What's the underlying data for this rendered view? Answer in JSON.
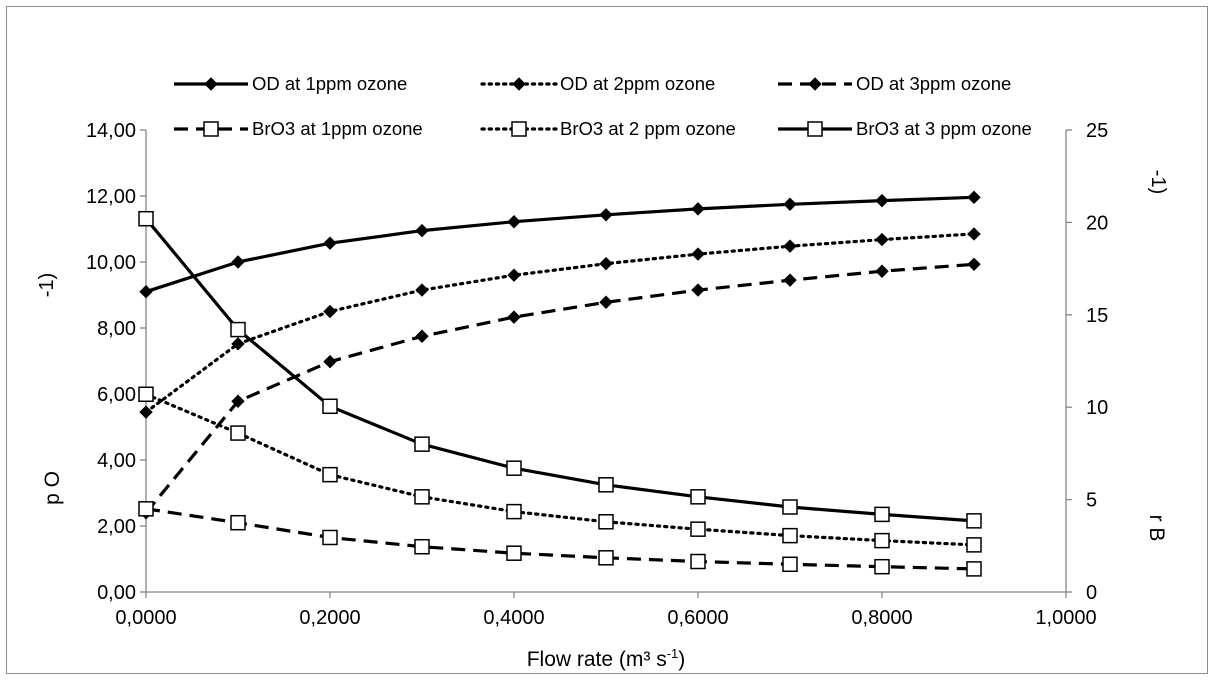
{
  "chart_data": {
    "type": "line",
    "x": [
      0.0,
      0.1,
      0.2,
      0.3,
      0.4,
      0.5,
      0.6,
      0.7,
      0.8,
      0.9
    ],
    "x_tick_labels": [
      "0,0000",
      "0,2000",
      "0,4000",
      "0,6000",
      "0,8000",
      "1,0000"
    ],
    "x_ticks": [
      0.0,
      0.2,
      0.4,
      0.6,
      0.8,
      1.0
    ],
    "xlim": [
      0,
      1.0
    ],
    "xlabel": {
      "main": "Flow rate (m³ s",
      "sup": "-1",
      "tail": ")"
    },
    "y_left": {
      "ylim": [
        0,
        14
      ],
      "ticks": [
        0,
        2,
        4,
        6,
        8,
        10,
        12,
        14
      ],
      "tick_labels": [
        "0,00",
        "2,00",
        "4,00",
        "6,00",
        "8,00",
        "10,00",
        "12,00",
        "14,00"
      ],
      "label": "p O",
      "label_fragment": "-1)"
    },
    "y_right": {
      "ylim": [
        0,
        25
      ],
      "ticks": [
        0,
        5,
        10,
        15,
        20,
        25
      ],
      "tick_labels": [
        "0",
        "5",
        "10",
        "15",
        "20",
        "25"
      ],
      "label": "r B",
      "label_fragment": "-1)"
    },
    "series": [
      {
        "name": "OD at 1ppm ozone",
        "axis": "left",
        "line": "solid",
        "marker": "diamond",
        "values": [
          9.1,
          10.0,
          10.57,
          10.95,
          11.22,
          11.43,
          11.61,
          11.75,
          11.86,
          11.96
        ]
      },
      {
        "name": "OD at 2ppm ozone",
        "axis": "left",
        "line": "dotted",
        "marker": "diamond",
        "values": [
          5.45,
          7.52,
          8.5,
          9.15,
          9.6,
          9.95,
          10.24,
          10.48,
          10.68,
          10.85
        ]
      },
      {
        "name": "OD at 3ppm ozone",
        "axis": "left",
        "line": "dashed",
        "marker": "diamond",
        "values": [
          2.4,
          5.78,
          6.98,
          7.75,
          8.33,
          8.78,
          9.15,
          9.45,
          9.72,
          9.93
        ]
      },
      {
        "name": "BrO3 at 1ppm ozone",
        "axis": "right",
        "line": "dashed",
        "marker": "square",
        "values": [
          4.5,
          3.75,
          2.95,
          2.45,
          2.1,
          1.85,
          1.65,
          1.5,
          1.37,
          1.25
        ]
      },
      {
        "name": "BrO3 at 2 ppm ozone",
        "axis": "right",
        "line": "dotted",
        "marker": "square",
        "values": [
          10.7,
          8.6,
          6.35,
          5.15,
          4.35,
          3.8,
          3.4,
          3.05,
          2.78,
          2.55
        ]
      },
      {
        "name": "BrO3 at 3 ppm ozone",
        "axis": "right",
        "line": "solid",
        "marker": "square",
        "values": [
          20.2,
          14.2,
          10.05,
          8.0,
          6.7,
          5.8,
          5.15,
          4.6,
          4.2,
          3.85
        ]
      }
    ],
    "legend_position": "top",
    "grid": false
  }
}
